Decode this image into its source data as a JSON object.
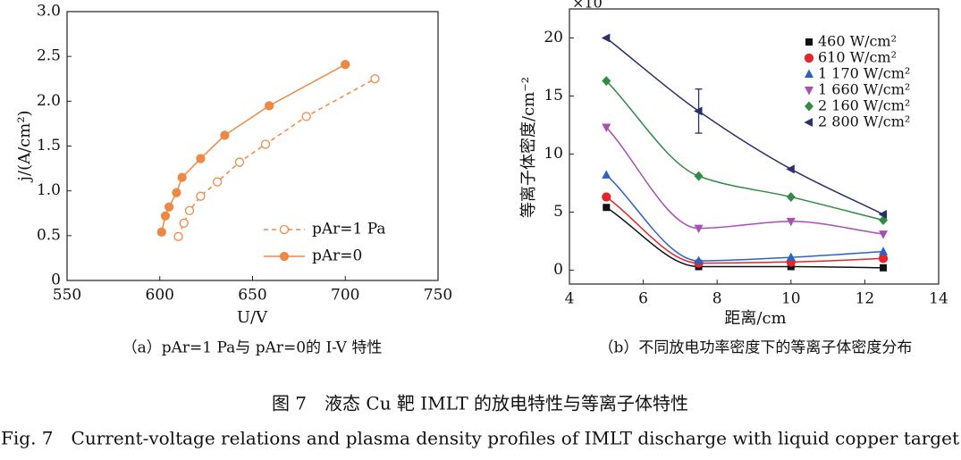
{
  "figure": {
    "title_cn": "图 7　液态 Cu 靶 IMLT 的放电特性与等离子体特性",
    "title_en": "Fig. 7　Current-voltage relations and plasma density profiles of IMLT discharge with liquid copper target"
  },
  "chart_data": [
    {
      "type": "line",
      "caption": "（a）pAr=1 Pa与 pAr=0的 I-V 特性",
      "xlabel": "U/V",
      "ylabel": "j/(A/cm²)",
      "xlim": [
        550,
        750
      ],
      "xticks": [
        550,
        600,
        650,
        700,
        750
      ],
      "ylim": [
        0,
        3.0
      ],
      "yticks": [
        0,
        0.5,
        {
          "value": 1,
          "label": "1.0"
        },
        1.5,
        {
          "value": 2,
          "label": "2.0"
        },
        2.5,
        {
          "value": 3,
          "label": "3.0"
        }
      ],
      "legend": "lower right",
      "series": [
        {
          "name": "pAr=1 Pa",
          "color": "#ec8a45",
          "linestyle": "dashed",
          "marker": "circle-open",
          "x": [
            610,
            613,
            616,
            622,
            631,
            643,
            657,
            679,
            716
          ],
          "values": [
            0.49,
            0.64,
            0.78,
            0.94,
            1.1,
            1.32,
            1.52,
            1.83,
            2.25
          ]
        },
        {
          "name": "pAr=0",
          "color": "#ec8a45",
          "linestyle": "solid",
          "marker": "circle",
          "x": [
            601,
            603,
            605,
            609,
            612,
            622,
            635,
            659,
            700
          ],
          "values": [
            0.54,
            0.72,
            0.82,
            0.98,
            1.15,
            1.36,
            1.62,
            1.95,
            2.41
          ]
        }
      ]
    },
    {
      "type": "line",
      "caption": "（b）不同放电功率密度下的等离子体密度分布",
      "xlabel": "距离/cm",
      "ylabel": "等离子体密度/cm⁻²",
      "yscale_label": "×10",
      "xlim": [
        4,
        14
      ],
      "xticks": [
        4,
        6,
        8,
        10,
        12,
        14
      ],
      "ylim": [
        -1.2,
        22.5
      ],
      "yticks": [
        0,
        5,
        10,
        15,
        20
      ],
      "legend": "upper right",
      "smooth": true,
      "x": [
        5,
        7.5,
        10,
        12.5
      ],
      "series": [
        {
          "name": "460 W/cm²",
          "color": "#111111",
          "marker": "square",
          "values": [
            5.4,
            0.3,
            0.3,
            0.2
          ]
        },
        {
          "name": "610 W/cm²",
          "color": "#e3262a",
          "marker": "circle",
          "values": [
            6.3,
            0.6,
            0.7,
            1.0
          ]
        },
        {
          "name": "1 170 W/cm²",
          "color": "#2f62c0",
          "marker": "triangle-up",
          "values": [
            8.2,
            0.8,
            1.1,
            1.6
          ]
        },
        {
          "name": "1 660 W/cm²",
          "color": "#a74fb3",
          "marker": "triangle-down",
          "values": [
            12.3,
            3.6,
            4.2,
            3.1
          ]
        },
        {
          "name": "2 160 W/cm²",
          "color": "#2f8c42",
          "marker": "diamond",
          "values": [
            16.3,
            8.1,
            6.3,
            4.3
          ]
        },
        {
          "name": "2 800 W/cm²",
          "color": "#2b2f6e",
          "marker": "triangle-left",
          "values": [
            20.0,
            13.7,
            8.7,
            4.8
          ],
          "errors": [
            null,
            1.9,
            null,
            null
          ]
        }
      ]
    }
  ]
}
